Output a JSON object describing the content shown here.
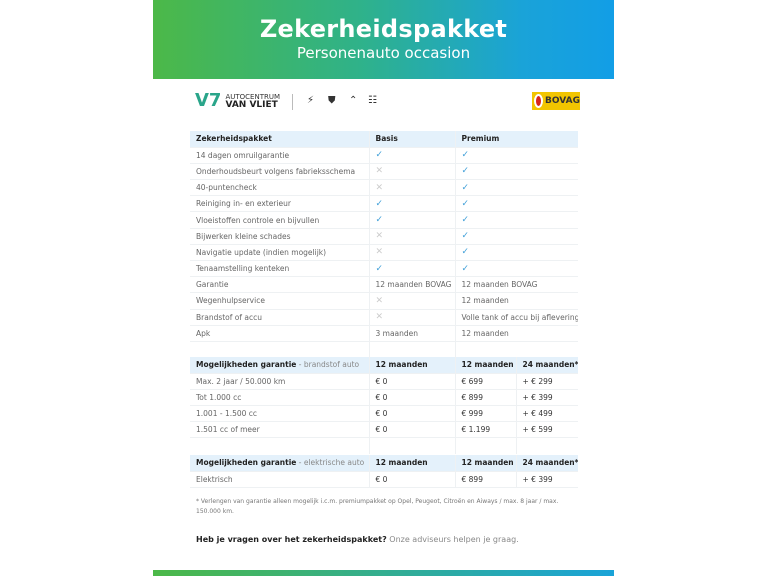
{
  "banner": {
    "title": "Zekerheidspakket",
    "subtitle": "Personenauto occasion"
  },
  "logos": {
    "dealer_top": "AUTOCENTRUM",
    "dealer_bottom": "VAN VLIET",
    "brands": [
      "opel-logo",
      "peugeot-logo",
      "citroen-logo",
      "aiways-logo"
    ],
    "bovag": "BOVAG"
  },
  "colors": {
    "accent_green": "#4cb848",
    "accent_blue": "#1aa3d8",
    "check": "#3f9fd8",
    "header_bg": "#e4f1fb"
  },
  "package_table": {
    "headers": [
      "Zekerheidspakket",
      "Basis",
      "Premium"
    ],
    "rows": [
      [
        "14 dagen omruilgarantie",
        "check",
        "check"
      ],
      [
        "Onderhoudsbeurt volgens fabrieksschema",
        "cross",
        "check"
      ],
      [
        "40-puntencheck",
        "cross",
        "check"
      ],
      [
        "Reiniging in- en exterieur",
        "check",
        "check"
      ],
      [
        "Vloeistoffen controle en bijvullen",
        "check",
        "check"
      ],
      [
        "Bijwerken kleine schades",
        "cross",
        "check"
      ],
      [
        "Navigatie update (indien mogelijk)",
        "cross",
        "check"
      ],
      [
        "Tenaamstelling kenteken",
        "check",
        "check"
      ],
      [
        "Garantie",
        "12 maanden BOVAG",
        "12 maanden BOVAG"
      ],
      [
        "Wegenhulpservice",
        "cross",
        "12 maanden"
      ],
      [
        "Brandstof of accu",
        "cross",
        "Volle tank of accu bij aflevering"
      ],
      [
        "Apk",
        "3 maanden",
        "12 maanden"
      ]
    ]
  },
  "fuel_table": {
    "header": "Mogelijkheden garantie",
    "sub": " - brandstof auto",
    "cols": [
      "12 maanden",
      "12 maanden",
      "24 maanden*"
    ],
    "rows": [
      [
        "Max. 2 jaar / 50.000 km",
        "€ 0",
        "€ 699",
        "+ € 299"
      ],
      [
        "Tot 1.000 cc",
        "€ 0",
        "€ 899",
        "+ € 399"
      ],
      [
        "1.001 - 1.500 cc",
        "€ 0",
        "€ 999",
        "+ € 499"
      ],
      [
        "1.501 cc of meer",
        "€ 0",
        "€ 1.199",
        "+ € 599"
      ]
    ]
  },
  "electric_table": {
    "header": "Mogelijkheden garantie",
    "sub": " - elektrische auto",
    "cols": [
      "12 maanden",
      "12 maanden",
      "24 maanden*"
    ],
    "rows": [
      [
        "Elektrisch",
        "€ 0",
        "€ 899",
        "+ € 399"
      ]
    ]
  },
  "footnote": "* Verlengen van garantie alleen mogelijk i.c.m. premiumpakket op Opel, Peugeot, Citroën en Aiways / max. 8 jaar / max. 150.000 km.",
  "question": {
    "bold": "Heb je vragen over het zekerheidspakket?",
    "rest": " Onze adviseurs helpen je graag."
  }
}
